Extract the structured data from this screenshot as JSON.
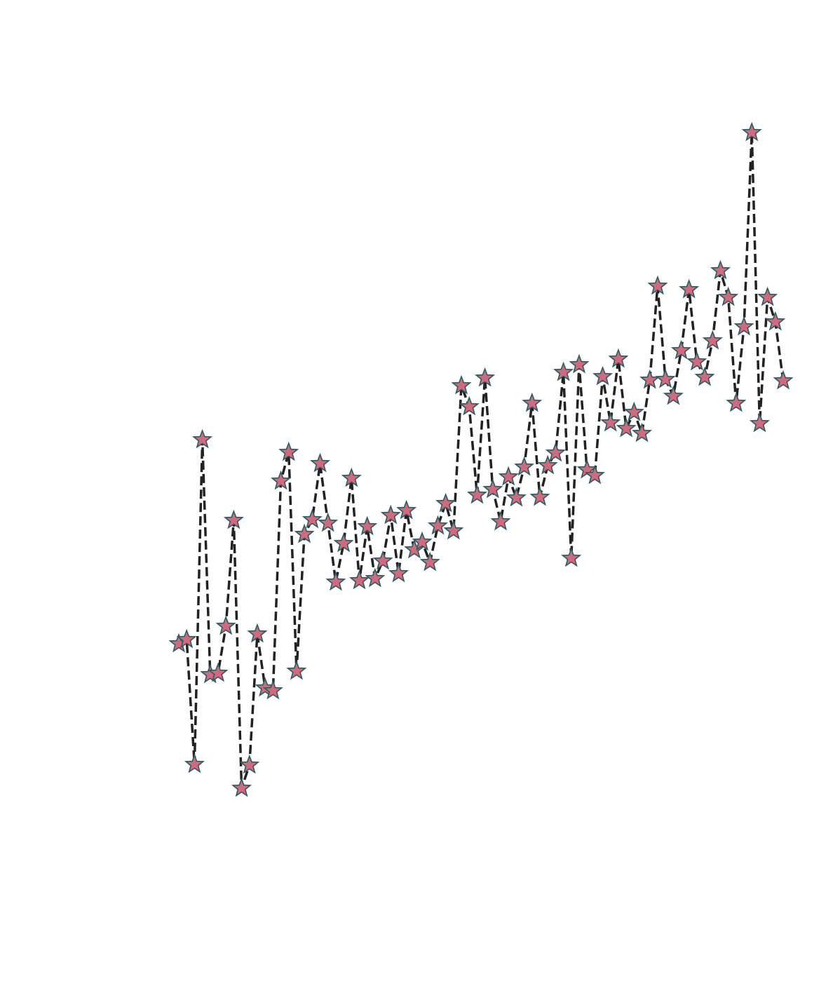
{
  "chart_data": {
    "type": "line",
    "x": [
      0,
      1,
      2,
      3,
      4,
      5,
      6,
      7,
      8,
      9,
      10,
      11,
      12,
      13,
      14,
      15,
      16,
      17,
      18,
      19,
      20,
      21,
      22,
      23,
      24,
      25,
      26,
      27,
      28,
      29,
      30,
      31,
      32,
      33,
      34,
      35,
      36,
      37,
      38,
      39,
      40,
      41,
      42,
      43,
      44,
      45,
      46,
      47,
      48,
      49,
      50,
      51,
      52,
      53,
      54,
      55,
      56,
      57,
      58,
      59,
      60,
      61,
      62,
      63,
      64,
      65,
      66,
      67,
      68,
      69,
      70,
      71,
      72,
      73,
      74,
      75,
      76,
      77
    ],
    "values": [
      33.2,
      33.8,
      16.0,
      62.3,
      28.8,
      29.0,
      35.7,
      50.8,
      12.6,
      15.9,
      34.6,
      26.9,
      26.5,
      56.4,
      60.5,
      29.3,
      48.8,
      50.9,
      58.9,
      50.4,
      42.0,
      47.5,
      56.8,
      42.2,
      49.9,
      42.5,
      45.0,
      51.5,
      43.2,
      52.2,
      46.6,
      47.7,
      44.8,
      50.0,
      53.2,
      49.3,
      70.0,
      67.0,
      54.4,
      71.1,
      55.2,
      50.6,
      57.0,
      54.0,
      58.4,
      67.5,
      54.1,
      58.6,
      60.4,
      71.9,
      45.4,
      73.0,
      58.0,
      57.2,
      71.3,
      64.7,
      73.8,
      63.9,
      66.2,
      63.2,
      70.8,
      84.2,
      70.9,
      68.5,
      75.0,
      83.7,
      73.4,
      71.2,
      76.4,
      86.4,
      82.6,
      67.5,
      78.4,
      106.1,
      64.6,
      82.6,
      79.1,
      70.7
    ],
    "color": "#222222",
    "linestyle": "dashed",
    "marker": "star",
    "marker_color": "#cf6b7e",
    "marker_edge_color": "#2d5b60",
    "xlim": [
      0,
      77
    ],
    "ylim": [
      0,
      110
    ],
    "axes": false
  }
}
